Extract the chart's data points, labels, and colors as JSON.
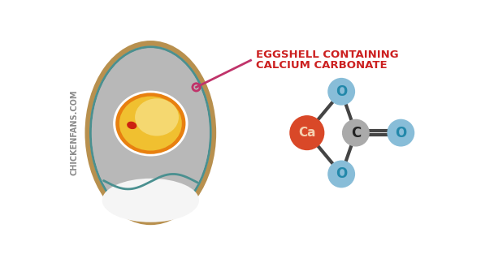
{
  "bg_color": "#ffffff",
  "egg_shell_color": "#b8904e",
  "egg_shell_inner_color": "#c9b48a",
  "egg_gray_color": "#b8b8b8",
  "egg_inner_gray": "#c8c8c8",
  "egg_white_area": "#f5f5f5",
  "egg_membrane_color": "#4a9090",
  "yolk_orange_color": "#e88010",
  "yolk_yellow_color": "#f0c030",
  "yolk_light_color": "#f5d870",
  "yolk_white_ring": "#ffffff",
  "blastoderm_color": "#cc2211",
  "annotation_line_color": "#c0336a",
  "annotation_text_color": "#cc2020",
  "annotation_text": [
    "EGGSHELL CONTAINING",
    "CALCIUM CARBONATE"
  ],
  "watermark_text": "CHICKENFANS.COM",
  "watermark_color": "#777777",
  "ca_color": "#d94828",
  "ca_text_color": "#f5d0b0",
  "c_color": "#aaaaaa",
  "c_text_color": "#222222",
  "o_color": "#88bdd8",
  "o_text_color": "#2288aa",
  "bond_color": "#444444"
}
